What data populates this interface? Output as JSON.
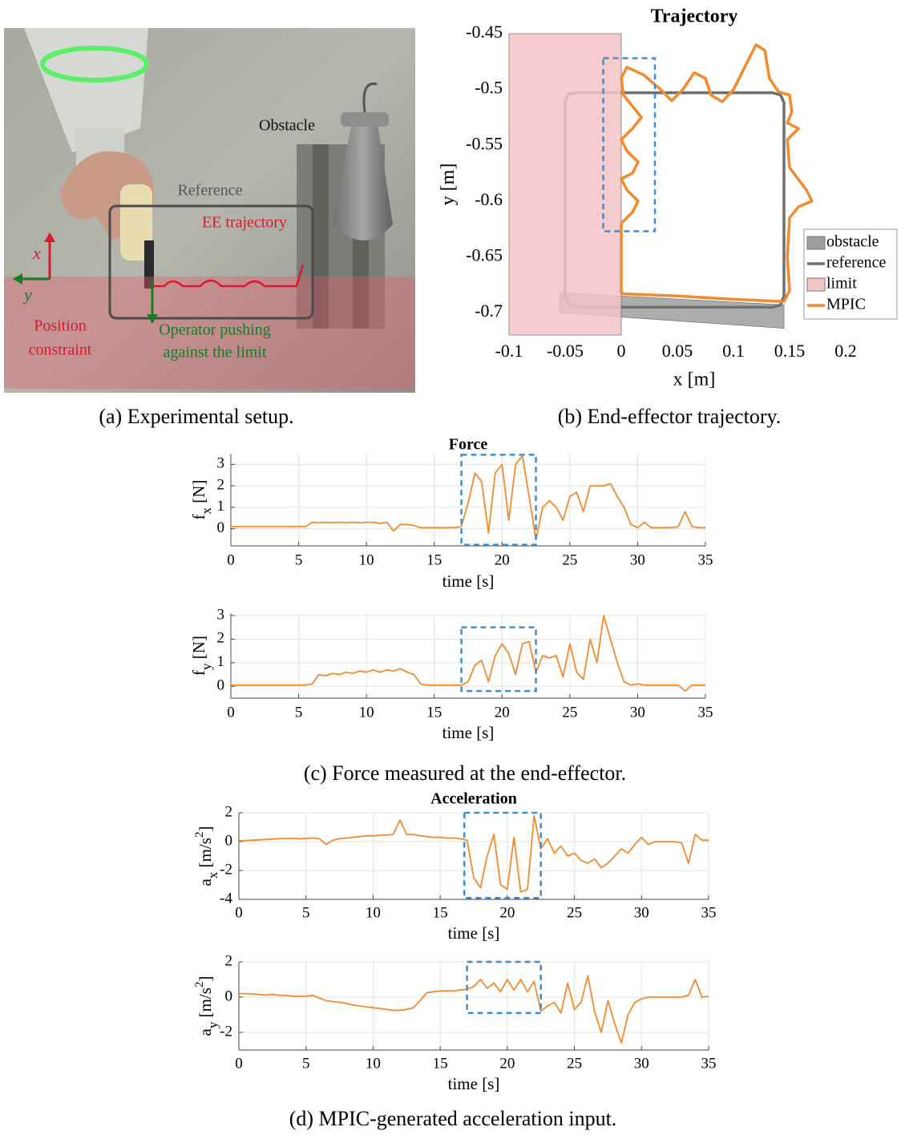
{
  "photo": {
    "obstacle": "Obstacle",
    "reference": "Reference",
    "ee_trajectory": "EE trajectory",
    "x_axis": "x",
    "y_axis": "y",
    "constraint": [
      "Position",
      "constraint"
    ],
    "operator": [
      "Operator pushing",
      "against the limit"
    ]
  },
  "captions": [
    "(a)  Experimental setup.",
    "(b)  End-effector trajectory.",
    "(c)  Force measured at the end-effector.",
    "(d)  MPIC-generated acceleration input."
  ],
  "chart_data": [
    {
      "type": "xy",
      "title": "Trajectory",
      "xlabel": "x [m]",
      "ylabel": [
        {
          "text": "y [m]"
        }
      ],
      "xlim": [
        -0.1,
        0.23
      ],
      "ylim": [
        -0.72,
        -0.45
      ],
      "xticks": [
        -0.1,
        -0.05,
        0,
        0.05,
        0.1,
        0.15,
        0.2
      ],
      "yticks": [
        -0.45,
        -0.5,
        -0.55,
        -0.6,
        -0.65,
        -0.7
      ],
      "legend": "lower right",
      "grid": false,
      "highlight": {
        "x": [
          -0.016,
          0.03
        ],
        "y": [
          -0.472,
          -0.627
        ]
      },
      "series": [
        {
          "name": "obstacle",
          "kind": "area",
          "color": "#9e9e9e",
          "x": [
            -0.055,
            0.145,
            0.145,
            -0.055
          ],
          "y": [
            -0.682,
            -0.693,
            -0.714,
            -0.7
          ]
        },
        {
          "name": "reference",
          "kind": "line",
          "color": "#707070",
          "x": [
            -0.05,
            -0.047,
            -0.04,
            0.135,
            0.142,
            0.145,
            0.145,
            0.142,
            0.135,
            -0.04,
            -0.047,
            -0.05,
            -0.05
          ],
          "y": [
            -0.51,
            -0.504,
            -0.503,
            -0.503,
            -0.505,
            -0.512,
            -0.685,
            -0.693,
            -0.695,
            -0.695,
            -0.692,
            -0.685,
            -0.51
          ]
        },
        {
          "name": "limit",
          "kind": "area",
          "color": "#f4c4c6",
          "x": [
            -0.1,
            0,
            0,
            -0.1
          ],
          "y": [
            -0.45,
            -0.45,
            -0.72,
            -0.72
          ]
        },
        {
          "name": "MPIC",
          "kind": "line",
          "color": "#f28a2e",
          "x": [
            0,
            0,
            0,
            0.01,
            0.015,
            0.005,
            0,
            0.01,
            0.015,
            0.005,
            0,
            0.01,
            0.018,
            0.01,
            0.002,
            0,
            0.005,
            0.02,
            0.035,
            0.045,
            0.055,
            0.065,
            0.075,
            0.08,
            0.09,
            0.1,
            0.11,
            0.12,
            0.128,
            0.132,
            0.14,
            0.15,
            0.152,
            0.148,
            0.158,
            0.148,
            0.15,
            0.165,
            0.17,
            0.158,
            0.15,
            0.148,
            0.15,
            0.145,
            0.1,
            0.05,
            0
          ],
          "y": [
            -0.683,
            -0.66,
            -0.62,
            -0.61,
            -0.6,
            -0.59,
            -0.58,
            -0.575,
            -0.565,
            -0.555,
            -0.545,
            -0.535,
            -0.525,
            -0.515,
            -0.505,
            -0.49,
            -0.48,
            -0.487,
            -0.5,
            -0.51,
            -0.5,
            -0.485,
            -0.49,
            -0.505,
            -0.511,
            -0.5,
            -0.48,
            -0.46,
            -0.465,
            -0.49,
            -0.502,
            -0.505,
            -0.52,
            -0.53,
            -0.535,
            -0.545,
            -0.57,
            -0.59,
            -0.6,
            -0.605,
            -0.615,
            -0.65,
            -0.68,
            -0.69,
            -0.688,
            -0.685,
            -0.683
          ]
        }
      ]
    },
    {
      "type": "line",
      "title": "Force",
      "xlabel": "time [s]",
      "ylabel": [
        {
          "text": "f"
        },
        {
          "text": "x",
          "sub": true
        },
        {
          "text": " [N]"
        }
      ],
      "xlim": [
        0,
        35
      ],
      "ylim": [
        -0.8,
        3.5
      ],
      "xticks": [
        0,
        5,
        10,
        15,
        20,
        25,
        30,
        35
      ],
      "yticks": [
        0,
        1,
        2,
        3
      ],
      "grid": true,
      "color": "#f28a2e",
      "highlight": {
        "x": [
          17,
          22.5
        ],
        "y": [
          -0.75,
          3.45
        ]
      },
      "x": [
        0,
        0.5,
        1,
        1.5,
        2,
        2.5,
        3,
        3.5,
        4,
        4.5,
        5,
        5.5,
        6,
        6.5,
        7,
        7.5,
        8,
        8.5,
        9,
        9.5,
        10,
        10.5,
        11,
        11.5,
        12,
        12.5,
        13,
        13.5,
        14,
        14.5,
        15,
        15.5,
        16,
        16.5,
        17,
        17.5,
        18,
        18.5,
        19,
        19.5,
        20,
        20.5,
        21,
        21.5,
        22,
        22.5,
        23,
        23.5,
        24,
        24.5,
        25,
        25.5,
        26,
        26.5,
        27,
        27.5,
        28,
        28.5,
        29,
        29.5,
        30,
        30.5,
        31,
        31.5,
        32,
        32.5,
        33,
        33.5,
        34,
        34.5,
        35
      ],
      "values": [
        0.1,
        0.1,
        0.1,
        0.1,
        0.1,
        0.1,
        0.1,
        0.1,
        0.1,
        0.1,
        0.1,
        0.1,
        0.3,
        0.28,
        0.3,
        0.28,
        0.3,
        0.28,
        0.3,
        0.28,
        0.3,
        0.3,
        0.25,
        0.3,
        -0.1,
        0.2,
        0.2,
        0.15,
        0.05,
        0.05,
        0.05,
        0.05,
        0.05,
        0.05,
        0.1,
        1.2,
        2.6,
        2.2,
        -0.2,
        2.6,
        3.0,
        0.4,
        3.0,
        3.4,
        1.5,
        -0.5,
        1.0,
        1.3,
        1.0,
        0.4,
        1.5,
        1.7,
        0.8,
        2.0,
        2.0,
        2.0,
        2.1,
        1.5,
        1.0,
        0.2,
        0.05,
        0.3,
        0.05,
        0.05,
        0.05,
        0.05,
        0.1,
        0.8,
        0.1,
        0.05,
        0.05
      ]
    },
    {
      "type": "line",
      "xlabel": "time [s]",
      "ylabel": [
        {
          "text": "f"
        },
        {
          "text": "y",
          "sub": true
        },
        {
          "text": " [N]"
        }
      ],
      "xlim": [
        0,
        35
      ],
      "ylim": [
        -0.5,
        3.1
      ],
      "xticks": [
        0,
        5,
        10,
        15,
        20,
        25,
        30,
        35
      ],
      "yticks": [
        0,
        1,
        2,
        3
      ],
      "grid": true,
      "color": "#f28a2e",
      "highlight": {
        "x": [
          17,
          22.5
        ],
        "y": [
          -0.2,
          2.5
        ]
      },
      "x": [
        0,
        0.5,
        1,
        1.5,
        2,
        2.5,
        3,
        3.5,
        4,
        4.5,
        5,
        5.5,
        6,
        6.5,
        7,
        7.5,
        8,
        8.5,
        9,
        9.5,
        10,
        10.5,
        11,
        11.5,
        12,
        12.5,
        13,
        13.5,
        14,
        14.5,
        15,
        15.5,
        16,
        16.5,
        17,
        17.5,
        18,
        18.5,
        19,
        19.5,
        20,
        20.5,
        21,
        21.5,
        22,
        22.5,
        23,
        23.5,
        24,
        24.5,
        25,
        25.5,
        26,
        26.5,
        27,
        27.5,
        28,
        28.5,
        29,
        29.5,
        30,
        30.5,
        31,
        31.5,
        32,
        32.5,
        33,
        33.5,
        34,
        34.5,
        35
      ],
      "values": [
        0.05,
        0.05,
        0.05,
        0.05,
        0.05,
        0.05,
        0.05,
        0.05,
        0.05,
        0.05,
        0.05,
        0.05,
        0.1,
        0.5,
        0.45,
        0.55,
        0.5,
        0.6,
        0.55,
        0.65,
        0.6,
        0.7,
        0.6,
        0.7,
        0.65,
        0.75,
        0.6,
        0.5,
        0.1,
        0.05,
        0.05,
        0.05,
        0.05,
        0.05,
        0.05,
        0.2,
        0.9,
        1.1,
        0.2,
        1.3,
        1.8,
        1.4,
        0.5,
        1.8,
        1.9,
        0.6,
        1.3,
        1.2,
        1.3,
        0.4,
        1.8,
        0.6,
        0.3,
        2.0,
        1.0,
        3.0,
        2.0,
        1.0,
        0.2,
        0.05,
        0.1,
        0.05,
        0.05,
        0.05,
        0.05,
        0.05,
        0.05,
        -0.2,
        0.05,
        0.05,
        0.05
      ]
    },
    {
      "type": "line",
      "title": "Acceleration",
      "xlabel": "time [s]",
      "ylabel": [
        {
          "text": "a"
        },
        {
          "text": "x",
          "sub": true
        },
        {
          "text": " [m/s"
        },
        {
          "text": "2",
          "sup": true
        },
        {
          "text": "]"
        }
      ],
      "xlim": [
        0,
        35
      ],
      "ylim": [
        -4,
        2
      ],
      "xticks": [
        0,
        5,
        10,
        15,
        20,
        25,
        30,
        35
      ],
      "yticks": [
        -4,
        -2,
        0,
        2
      ],
      "grid": true,
      "color": "#f28a2e",
      "highlight": {
        "x": [
          16.8,
          22.5
        ],
        "y": [
          -3.9,
          2
        ]
      },
      "x": [
        0,
        0.5,
        1,
        1.5,
        2,
        2.5,
        3,
        3.5,
        4,
        4.5,
        5,
        5.5,
        6,
        6.5,
        7,
        7.5,
        8,
        8.5,
        9,
        9.5,
        10,
        10.5,
        11,
        11.5,
        12,
        12.5,
        13,
        13.5,
        14,
        14.5,
        15,
        15.5,
        16,
        16.5,
        17,
        17.5,
        18,
        18.5,
        19,
        19.5,
        20,
        20.5,
        21,
        21.5,
        22,
        22.5,
        23,
        23.5,
        24,
        24.5,
        25,
        25.5,
        26,
        26.5,
        27,
        27.5,
        28,
        28.5,
        29,
        29.5,
        30,
        30.5,
        31,
        31.5,
        32,
        32.5,
        33,
        33.5,
        34,
        34.5,
        35
      ],
      "values": [
        0.05,
        0.08,
        0.1,
        0.12,
        0.15,
        0.18,
        0.2,
        0.22,
        0.22,
        0.2,
        0.22,
        0.25,
        0.2,
        -0.2,
        0.1,
        0.2,
        0.25,
        0.3,
        0.35,
        0.4,
        0.4,
        0.45,
        0.45,
        0.5,
        1.5,
        0.5,
        0.5,
        0.4,
        0.35,
        0.3,
        0.3,
        0.25,
        0.25,
        0.2,
        0.1,
        -2.5,
        -3.2,
        -1,
        0.5,
        -3,
        -3.3,
        0.3,
        -3.5,
        -3.3,
        1.8,
        -0.5,
        0.2,
        -0.8,
        -0.3,
        -1.0,
        -0.8,
        -1.3,
        -1.5,
        -1.2,
        -1.8,
        -1.5,
        -1.0,
        -0.5,
        -0.8,
        -0.2,
        0.3,
        -0.2,
        0,
        0,
        0,
        0,
        -0.1,
        -1.5,
        0.5,
        0.1,
        0.1
      ]
    },
    {
      "type": "line",
      "xlabel": "time [s]",
      "ylabel": [
        {
          "text": "a"
        },
        {
          "text": "y",
          "sub": true
        },
        {
          "text": " [m/s"
        },
        {
          "text": "2",
          "sup": true
        },
        {
          "text": "]"
        }
      ],
      "xlim": [
        0,
        35
      ],
      "ylim": [
        -3,
        2
      ],
      "xticks": [
        0,
        5,
        10,
        15,
        20,
        25,
        30,
        35
      ],
      "yticks": [
        -2,
        0,
        2
      ],
      "grid": true,
      "color": "#f28a2e",
      "highlight": {
        "x": [
          17,
          22.5
        ],
        "y": [
          -0.9,
          2
        ]
      },
      "x": [
        0,
        0.5,
        1,
        1.5,
        2,
        2.5,
        3,
        3.5,
        4,
        4.5,
        5,
        5.5,
        6,
        6.5,
        7,
        7.5,
        8,
        8.5,
        9,
        9.5,
        10,
        10.5,
        11,
        11.5,
        12,
        12.5,
        13,
        13.5,
        14,
        14.5,
        15,
        15.5,
        16,
        16.5,
        17,
        17.5,
        18,
        18.5,
        19,
        19.5,
        20,
        20.5,
        21,
        21.5,
        22,
        22.5,
        23,
        23.5,
        24,
        24.5,
        25,
        25.5,
        26,
        26.5,
        27,
        27.5,
        28,
        28.5,
        29,
        29.5,
        30,
        30.5,
        31,
        31.5,
        32,
        32.5,
        33,
        33.5,
        34,
        34.5,
        35
      ],
      "values": [
        0.2,
        0.2,
        0.18,
        0.15,
        0.12,
        0.15,
        0.1,
        0.1,
        0.05,
        0.05,
        0.05,
        0.1,
        -0.05,
        -0.2,
        -0.25,
        -0.3,
        -0.35,
        -0.45,
        -0.5,
        -0.55,
        -0.6,
        -0.65,
        -0.7,
        -0.75,
        -0.75,
        -0.7,
        -0.6,
        -0.2,
        0.25,
        0.3,
        0.35,
        0.35,
        0.35,
        0.4,
        0.45,
        0.6,
        1.0,
        0.5,
        0.8,
        0.3,
        1.0,
        0.4,
        1.0,
        0.3,
        0.9,
        -0.8,
        -0.5,
        -0.3,
        -0.9,
        0.8,
        -0.7,
        -0.3,
        1.2,
        -0.8,
        -2.0,
        -0.2,
        -1.5,
        -2.6,
        -1.0,
        -0.3,
        -0.1,
        0,
        0,
        0,
        0,
        0,
        0,
        0.1,
        1.0,
        0,
        0.05
      ]
    }
  ]
}
